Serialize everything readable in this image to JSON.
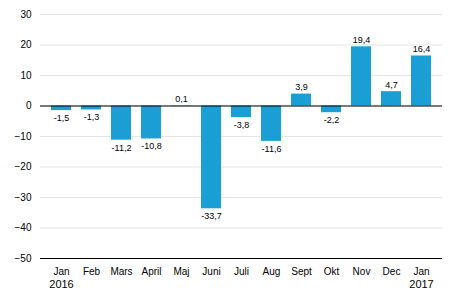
{
  "chart_data": {
    "type": "bar",
    "categories": [
      "Jan",
      "Feb",
      "Mars",
      "April",
      "Maj",
      "Juni",
      "Juli",
      "Aug",
      "Sept",
      "Okt",
      "Nov",
      "Dec",
      "Jan"
    ],
    "values": [
      -1.5,
      -1.3,
      -11.2,
      -10.8,
      0.1,
      -33.7,
      -3.8,
      -11.6,
      3.9,
      -2.2,
      19.4,
      4.7,
      16.4
    ],
    "value_labels": [
      "-1,5",
      "-1,3",
      "-11,2",
      "-10,8",
      "0,1",
      "-33,7",
      "-3,8",
      "-11,6",
      "3,9",
      "-2,2",
      "19,4",
      "4,7",
      "16,4"
    ],
    "data_labels": true,
    "color": "#1a9ed4",
    "ylim": [
      -50,
      30
    ],
    "yticks": [
      -50,
      -40,
      -30,
      -20,
      -10,
      0,
      10,
      20,
      30
    ],
    "grid": true,
    "annotations": [
      {
        "text": "2016",
        "x": 0
      },
      {
        "text": "2017",
        "x": 12
      }
    ]
  }
}
